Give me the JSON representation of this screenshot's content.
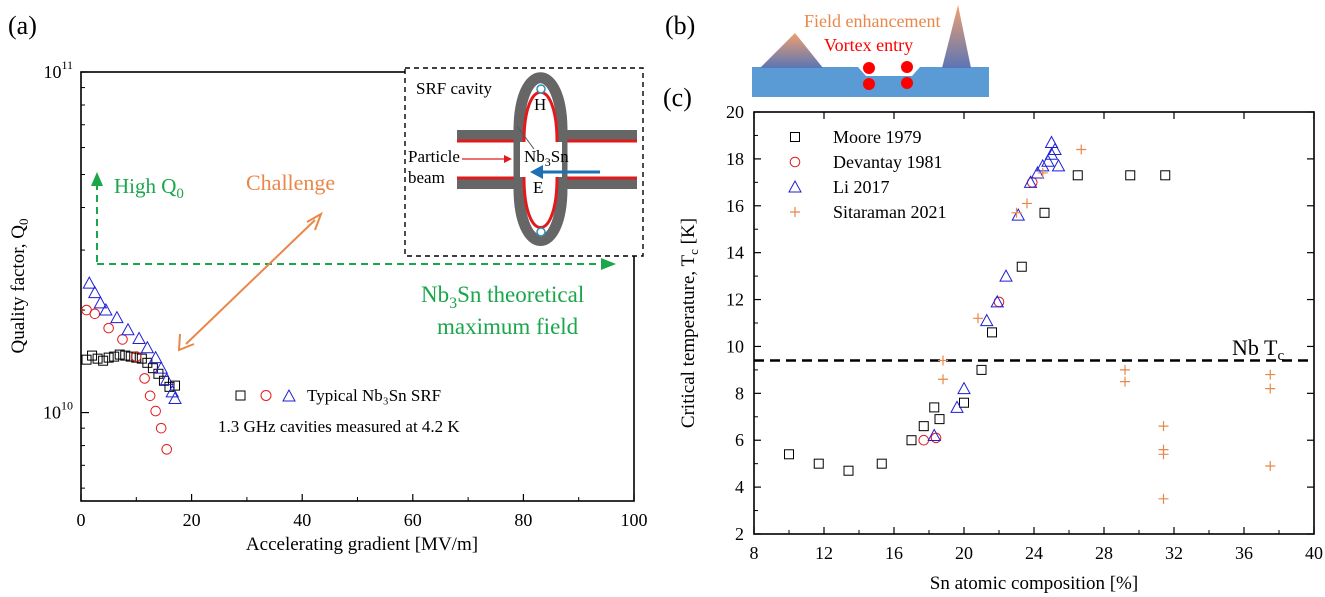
{
  "panel_labels": {
    "a": "(a)",
    "b": "(b)",
    "c": "(c)"
  },
  "panel_a": {
    "inset": {
      "title": "SRF cavity",
      "h_label": "H",
      "particle_label_1": "Particle",
      "particle_label_2": "beam",
      "material_label": "Nb",
      "material_sub": "3",
      "material_rest": "Sn",
      "e_label": "E"
    },
    "annotations": {
      "high_q": "High Q",
      "high_q_sub": "0",
      "challenge": "Challenge",
      "theory_line1_a": "Nb",
      "theory_line1_sub": "3",
      "theory_line1_b": "Sn theoretical",
      "theory_line2": "maximum field",
      "legend_label": "Typical Nb₃Sn SRF",
      "legend_note": "1.3 GHz cavities measured at 4.2 K"
    },
    "colors": {
      "squares": "#000000",
      "circles": "#e31a1c",
      "triangles": "#1f1fd6",
      "green": "#1aa64a",
      "orange": "#e9874a"
    }
  },
  "panel_b": {
    "field_label": "Field enhancement",
    "vortex_label": "Vortex entry",
    "colors": {
      "substrate": "#5b9bd5",
      "field": "#e9874a",
      "vortex": "#ff0000"
    }
  },
  "panel_c": {
    "nb_tc_label": "Nb T",
    "nb_tc_sub": "c"
  },
  "chart_data": [
    {
      "type": "scatter",
      "panel": "a",
      "xlabel": "Accelerating gradient [MV/m]",
      "ylabel": "Quality factor, Q",
      "ylabel_sub": "0",
      "xlim": [
        0,
        100
      ],
      "ylim": [
        5500000000.0,
        100000000000.0
      ],
      "yscale": "log",
      "xticks": [
        "0",
        "20",
        "40",
        "60",
        "80",
        "100"
      ],
      "yticks": [
        {
          "base": "10",
          "exp": "10",
          "value": 10000000000.0
        },
        {
          "base": "10",
          "exp": "11",
          "value": 100000000000.0
        }
      ],
      "series": [
        {
          "marker": "square",
          "color": "#000000",
          "values": [
            [
              1.0,
              14300000000.0
            ],
            [
              2.0,
              14700000000.0
            ],
            [
              3.0,
              14400000000.0
            ],
            [
              4.0,
              14200000000.0
            ],
            [
              5.0,
              14500000000.0
            ],
            [
              6.0,
              14600000000.0
            ],
            [
              7.0,
              14800000000.0
            ],
            [
              8.0,
              14700000000.0
            ],
            [
              9.0,
              14600000000.0
            ],
            [
              10.0,
              14500000000.0
            ],
            [
              11.0,
              14400000000.0
            ],
            [
              12.0,
              14000000000.0
            ],
            [
              13.0,
              13500000000.0
            ],
            [
              14.0,
              13000000000.0
            ],
            [
              15.0,
              12400000000.0
            ],
            [
              16.0,
              11900000000.0
            ],
            [
              17.0,
              12000000000.0
            ]
          ]
        },
        {
          "marker": "circle",
          "color": "#e31a1c",
          "values": [
            [
              1.0,
              20000000000.0
            ],
            [
              2.5,
              19500000000.0
            ],
            [
              5.0,
              17700000000.0
            ],
            [
              7.5,
              16400000000.0
            ],
            [
              10.0,
              14600000000.0
            ],
            [
              11.5,
              12600000000.0
            ],
            [
              12.5,
              11200000000.0
            ],
            [
              13.5,
              10100000000.0
            ],
            [
              14.5,
              9000000000.0
            ],
            [
              15.5,
              7800000000.0
            ]
          ]
        },
        {
          "marker": "triangle",
          "color": "#1f1fd6",
          "values": [
            [
              1.5,
              24000000000.0
            ],
            [
              2.5,
              22500000000.0
            ],
            [
              3.5,
              21000000000.0
            ],
            [
              4.5,
              20000000000.0
            ],
            [
              6.5,
              19000000000.0
            ],
            [
              8.5,
              17500000000.0
            ],
            [
              10.5,
              16500000000.0
            ],
            [
              12.0,
              15500000000.0
            ],
            [
              13.5,
              14500000000.0
            ],
            [
              14.5,
              13500000000.0
            ],
            [
              15.5,
              12500000000.0
            ],
            [
              16.5,
              11500000000.0
            ],
            [
              17.0,
              11000000000.0
            ]
          ]
        }
      ]
    },
    {
      "type": "scatter",
      "panel": "c",
      "xlabel": "Sn atomic composition [%]",
      "ylabel": "Critical temperature, T",
      "ylabel_sub": "c",
      "ylabel_unit": " [K]",
      "xlim": [
        8,
        40
      ],
      "ylim": [
        2,
        20
      ],
      "xticks": [
        "8",
        "12",
        "16",
        "20",
        "24",
        "28",
        "32",
        "36",
        "40"
      ],
      "yticks": [
        "2",
        "4",
        "6",
        "8",
        "10",
        "12",
        "14",
        "16",
        "18",
        "20"
      ],
      "reference_line": {
        "y": 9.4,
        "style": "dashed"
      },
      "series": [
        {
          "name": "Moore 1979",
          "marker": "square",
          "color": "#000000",
          "values": [
            [
              10.0,
              5.4
            ],
            [
              11.7,
              5.0
            ],
            [
              13.4,
              4.7
            ],
            [
              15.3,
              5.0
            ],
            [
              17.0,
              6.0
            ],
            [
              17.7,
              6.6
            ],
            [
              18.3,
              7.4
            ],
            [
              18.6,
              6.9
            ],
            [
              20.0,
              7.6
            ],
            [
              21.0,
              9.0
            ],
            [
              21.6,
              10.6
            ],
            [
              23.3,
              13.4
            ],
            [
              24.6,
              15.7
            ],
            [
              26.5,
              17.3
            ],
            [
              29.5,
              17.3
            ],
            [
              31.5,
              17.3
            ]
          ]
        },
        {
          "name": "Devantay 1981",
          "marker": "circle",
          "color": "#e31a1c",
          "values": [
            [
              17.7,
              6.0
            ],
            [
              18.4,
              6.1
            ],
            [
              22.0,
              11.9
            ],
            [
              23.9,
              17.0
            ]
          ]
        },
        {
          "name": "Li 2017",
          "marker": "triangle",
          "color": "#1f1fd6",
          "values": [
            [
              18.3,
              6.2
            ],
            [
              19.6,
              7.4
            ],
            [
              20.0,
              8.2
            ],
            [
              21.3,
              11.1
            ],
            [
              21.9,
              11.9
            ],
            [
              22.4,
              13.0
            ],
            [
              23.1,
              15.6
            ],
            [
              23.8,
              17.0
            ],
            [
              24.2,
              17.4
            ],
            [
              24.5,
              17.7
            ],
            [
              24.8,
              17.9
            ],
            [
              25.0,
              18.7
            ],
            [
              25.0,
              18.2
            ],
            [
              25.4,
              17.7
            ],
            [
              25.2,
              18.4
            ]
          ]
        },
        {
          "name": "Sitaraman 2021",
          "marker": "plus",
          "color": "#e9874a",
          "values": [
            [
              18.8,
              8.6
            ],
            [
              18.8,
              9.4
            ],
            [
              20.8,
              11.2
            ],
            [
              23.0,
              15.7
            ],
            [
              23.6,
              16.1
            ],
            [
              24.5,
              17.4
            ],
            [
              26.7,
              18.4
            ],
            [
              29.2,
              9.0
            ],
            [
              29.2,
              8.5
            ],
            [
              31.4,
              6.6
            ],
            [
              31.4,
              5.6
            ],
            [
              31.4,
              5.4
            ],
            [
              31.4,
              3.5
            ],
            [
              37.5,
              8.8
            ],
            [
              37.5,
              8.2
            ],
            [
              37.5,
              4.9
            ]
          ]
        }
      ]
    }
  ]
}
